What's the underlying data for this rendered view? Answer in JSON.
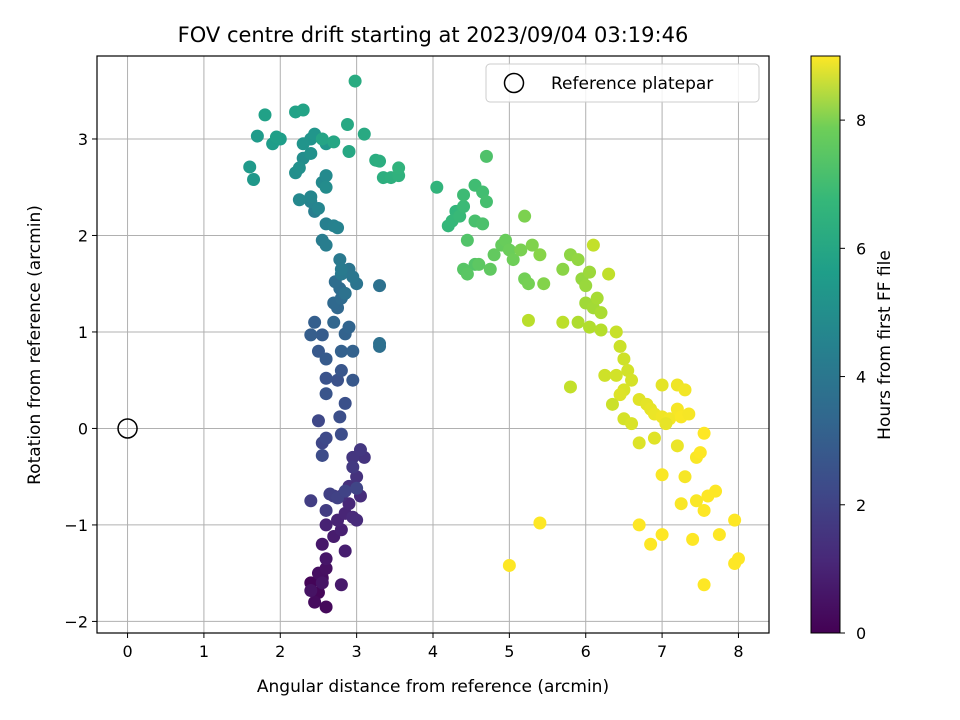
{
  "chart_data": {
    "type": "scatter",
    "title": "FOV centre drift starting at 2023/09/04 03:19:46",
    "xlabel": "Angular distance from reference (arcmin)",
    "ylabel": "Rotation from reference (arcmin)",
    "xlim": [
      -0.4,
      8.4
    ],
    "ylim": [
      -2.12,
      3.86
    ],
    "xticks": [
      "0",
      "1",
      "2",
      "3",
      "4",
      "5",
      "6",
      "7",
      "8"
    ],
    "yticks": [
      "−2",
      "−1",
      "0",
      "1",
      "2",
      "3"
    ],
    "grid": true,
    "colormap": "viridis",
    "legend": {
      "placement": "upper right",
      "label": "Reference platepar"
    },
    "reference_point": {
      "x": 0,
      "y": 0
    },
    "colorbar": {
      "label": "Hours from first FF file",
      "range": [
        0,
        9
      ],
      "ticks": [
        "0",
        "2",
        "4",
        "6",
        "8"
      ]
    },
    "series": [
      {
        "points": [
          [
            2.4,
            -1.6,
            0.1
          ],
          [
            2.5,
            -1.7,
            0.15
          ],
          [
            2.6,
            -1.85,
            0.2
          ],
          [
            2.45,
            -1.8,
            0.25
          ],
          [
            2.55,
            -1.55,
            0.3
          ],
          [
            2.5,
            -1.5,
            0.35
          ],
          [
            2.6,
            -1.45,
            0.4
          ],
          [
            2.4,
            -1.68,
            0.45
          ],
          [
            2.55,
            -1.6,
            0.5
          ],
          [
            2.6,
            -1.35,
            0.55
          ],
          [
            2.55,
            -1.2,
            0.6
          ],
          [
            2.8,
            -1.62,
            0.65
          ],
          [
            2.7,
            -1.12,
            0.7
          ],
          [
            2.85,
            -1.27,
            0.75
          ],
          [
            2.8,
            -1.05,
            0.8
          ],
          [
            2.6,
            -1.0,
            0.85
          ],
          [
            2.75,
            -0.95,
            0.9
          ],
          [
            2.85,
            -0.88,
            0.95
          ],
          [
            2.9,
            -0.78,
            1.0
          ],
          [
            2.95,
            -0.92,
            1.05
          ],
          [
            3.0,
            -0.95,
            1.1
          ],
          [
            3.05,
            -0.7,
            1.15
          ],
          [
            2.8,
            -0.7,
            1.2
          ],
          [
            2.9,
            -0.6,
            1.25
          ],
          [
            3.0,
            -0.5,
            1.3
          ],
          [
            3.1,
            -0.3,
            1.35
          ],
          [
            2.95,
            -0.3,
            1.4
          ],
          [
            3.05,
            -0.22,
            1.45
          ],
          [
            2.95,
            -0.4,
            1.5
          ],
          [
            2.7,
            -0.7,
            1.55
          ],
          [
            2.6,
            -0.85,
            1.6
          ],
          [
            2.4,
            -0.75,
            1.65
          ],
          [
            2.65,
            -0.68,
            1.7
          ],
          [
            2.75,
            -0.72,
            1.75
          ],
          [
            2.85,
            -0.65,
            1.8
          ],
          [
            3.0,
            -0.62,
            1.85
          ],
          [
            2.55,
            -0.15,
            1.9
          ],
          [
            2.5,
            0.08,
            1.95
          ],
          [
            2.6,
            -0.1,
            2.0
          ],
          [
            2.55,
            -0.28,
            2.05
          ],
          [
            2.8,
            -0.06,
            2.1
          ],
          [
            2.78,
            0.12,
            2.15
          ],
          [
            2.85,
            0.26,
            2.2
          ],
          [
            2.75,
            0.5,
            2.25
          ],
          [
            2.6,
            0.52,
            2.3
          ],
          [
            2.6,
            0.36,
            2.35
          ],
          [
            2.8,
            0.6,
            2.4
          ],
          [
            2.95,
            0.5,
            2.45
          ],
          [
            2.5,
            0.8,
            2.5
          ],
          [
            2.6,
            0.72,
            2.55
          ],
          [
            2.55,
            0.97,
            2.6
          ],
          [
            2.4,
            0.97,
            2.65
          ],
          [
            2.45,
            1.1,
            2.7
          ],
          [
            2.8,
            0.8,
            2.75
          ],
          [
            2.95,
            0.8,
            2.8
          ],
          [
            2.85,
            0.98,
            2.85
          ],
          [
            2.9,
            1.05,
            2.9
          ],
          [
            2.7,
            1.1,
            2.95
          ],
          [
            2.75,
            1.25,
            3.0
          ],
          [
            2.7,
            1.3,
            3.05
          ],
          [
            2.8,
            1.35,
            3.1
          ],
          [
            2.78,
            1.45,
            3.15
          ],
          [
            2.72,
            1.52,
            3.2
          ],
          [
            3.3,
            0.85,
            3.25
          ],
          [
            3.3,
            0.88,
            3.3
          ],
          [
            3.3,
            1.48,
            3.35
          ],
          [
            2.85,
            1.4,
            3.4
          ],
          [
            3.0,
            1.5,
            3.45
          ],
          [
            2.9,
            1.65,
            3.5
          ],
          [
            2.95,
            1.57,
            3.55
          ],
          [
            2.8,
            1.6,
            3.6
          ],
          [
            2.78,
            1.75,
            3.65
          ],
          [
            2.8,
            1.65,
            3.7
          ],
          [
            2.55,
            1.95,
            3.75
          ],
          [
            2.6,
            1.9,
            3.8
          ],
          [
            2.45,
            2.25,
            3.85
          ],
          [
            2.6,
            2.12,
            3.9
          ],
          [
            2.7,
            2.1,
            3.95
          ],
          [
            2.75,
            2.08,
            4.0
          ],
          [
            2.4,
            2.35,
            4.05
          ],
          [
            2.5,
            2.28,
            4.1
          ],
          [
            2.4,
            2.4,
            4.15
          ],
          [
            2.25,
            2.37,
            4.2
          ],
          [
            2.55,
            2.55,
            4.25
          ],
          [
            2.6,
            2.62,
            4.3
          ],
          [
            2.6,
            2.5,
            4.35
          ],
          [
            2.3,
            2.8,
            4.4
          ],
          [
            2.2,
            2.65,
            4.45
          ],
          [
            2.25,
            2.7,
            4.5
          ],
          [
            2.4,
            2.85,
            4.55
          ],
          [
            2.4,
            3.0,
            4.6
          ],
          [
            2.3,
            2.95,
            4.65
          ],
          [
            2.45,
            3.05,
            4.7
          ],
          [
            2.6,
            2.95,
            4.75
          ],
          [
            1.65,
            2.58,
            4.8
          ],
          [
            1.6,
            2.71,
            4.85
          ],
          [
            1.7,
            3.03,
            4.9
          ],
          [
            1.9,
            2.95,
            4.95
          ],
          [
            2.0,
            3.0,
            5.0
          ],
          [
            1.95,
            3.02,
            5.05
          ],
          [
            1.8,
            3.25,
            5.1
          ],
          [
            2.2,
            3.28,
            5.15
          ],
          [
            2.3,
            3.3,
            5.2
          ],
          [
            2.55,
            3.0,
            5.25
          ],
          [
            2.7,
            2.97,
            5.3
          ],
          [
            2.9,
            2.87,
            5.35
          ],
          [
            2.88,
            3.15,
            5.4
          ],
          [
            3.1,
            3.05,
            5.45
          ],
          [
            2.98,
            3.6,
            5.5
          ],
          [
            3.25,
            2.78,
            5.55
          ],
          [
            3.3,
            2.77,
            5.6
          ],
          [
            3.35,
            2.6,
            5.65
          ],
          [
            3.45,
            2.6,
            5.7
          ],
          [
            3.55,
            2.62,
            5.75
          ],
          [
            3.55,
            2.7,
            5.8
          ],
          [
            4.05,
            2.5,
            5.85
          ],
          [
            4.3,
            2.25,
            5.9
          ],
          [
            4.2,
            2.1,
            5.95
          ],
          [
            4.25,
            2.15,
            6.0
          ],
          [
            4.35,
            2.2,
            6.05
          ],
          [
            4.4,
            2.3,
            6.1
          ],
          [
            4.4,
            2.42,
            6.15
          ],
          [
            4.55,
            2.52,
            6.2
          ],
          [
            4.65,
            2.45,
            6.25
          ],
          [
            4.7,
            2.35,
            6.3
          ],
          [
            4.55,
            2.15,
            6.35
          ],
          [
            4.65,
            2.12,
            6.4
          ],
          [
            4.7,
            2.82,
            6.45
          ],
          [
            4.45,
            1.95,
            6.5
          ],
          [
            4.55,
            1.7,
            6.55
          ],
          [
            4.4,
            1.65,
            6.6
          ],
          [
            4.45,
            1.6,
            6.65
          ],
          [
            4.6,
            1.7,
            6.7
          ],
          [
            4.75,
            1.65,
            6.75
          ],
          [
            4.8,
            1.8,
            6.8
          ],
          [
            4.9,
            1.9,
            6.85
          ],
          [
            4.95,
            1.95,
            6.9
          ],
          [
            5.0,
            1.85,
            6.95
          ],
          [
            5.05,
            1.75,
            7.0
          ],
          [
            5.2,
            1.55,
            7.05
          ],
          [
            5.25,
            1.5,
            7.1
          ],
          [
            5.15,
            1.85,
            7.15
          ],
          [
            5.2,
            2.2,
            7.2
          ],
          [
            5.3,
            1.9,
            7.25
          ],
          [
            5.45,
            1.5,
            7.3
          ],
          [
            5.4,
            1.8,
            7.35
          ],
          [
            5.7,
            1.65,
            7.4
          ],
          [
            5.8,
            1.8,
            7.45
          ],
          [
            5.9,
            1.75,
            7.5
          ],
          [
            5.95,
            1.55,
            7.55
          ],
          [
            6.0,
            1.48,
            7.6
          ],
          [
            6.05,
            1.62,
            7.65
          ],
          [
            6.0,
            1.3,
            7.7
          ],
          [
            6.1,
            1.25,
            7.75
          ],
          [
            6.15,
            1.35,
            7.8
          ],
          [
            6.2,
            1.2,
            7.85
          ],
          [
            5.9,
            1.1,
            7.9
          ],
          [
            6.05,
            1.05,
            7.95
          ],
          [
            6.2,
            1.02,
            8.0
          ],
          [
            5.25,
            1.12,
            8.05
          ],
          [
            5.7,
            1.1,
            8.1
          ],
          [
            6.3,
            1.6,
            8.15
          ],
          [
            6.1,
            1.9,
            8.2
          ],
          [
            6.4,
            1.0,
            8.25
          ],
          [
            6.45,
            0.85,
            8.3
          ],
          [
            6.5,
            0.72,
            8.35
          ],
          [
            6.55,
            0.6,
            8.4
          ],
          [
            6.6,
            0.5,
            8.45
          ],
          [
            6.5,
            0.4,
            8.5
          ],
          [
            6.45,
            0.35,
            8.55
          ],
          [
            6.7,
            0.3,
            8.6
          ],
          [
            6.8,
            0.25,
            8.65
          ],
          [
            6.85,
            0.2,
            8.7
          ],
          [
            6.9,
            0.15,
            8.75
          ],
          [
            7.0,
            0.12,
            8.8
          ],
          [
            7.1,
            0.1,
            8.85
          ],
          [
            7.2,
            0.2,
            8.9
          ],
          [
            7.25,
            0.12,
            8.95
          ]
        ]
      },
      {
        "points": [
          [
            5.8,
            0.43,
            8.2
          ],
          [
            6.35,
            0.25,
            8.3
          ],
          [
            6.25,
            0.55,
            8.35
          ],
          [
            6.4,
            0.55,
            8.4
          ],
          [
            6.5,
            0.1,
            8.45
          ],
          [
            6.6,
            0.05,
            8.5
          ],
          [
            6.7,
            -0.15,
            8.55
          ],
          [
            6.9,
            -0.1,
            8.6
          ],
          [
            7.0,
            0.45,
            8.65
          ],
          [
            7.05,
            0.05,
            8.7
          ],
          [
            7.2,
            -0.18,
            8.75
          ],
          [
            7.2,
            0.45,
            8.8
          ],
          [
            7.3,
            0.4,
            8.85
          ],
          [
            7.35,
            0.15,
            8.9
          ],
          [
            7.45,
            -0.3,
            8.95
          ],
          [
            7.5,
            -0.25,
            9.0
          ],
          [
            7.55,
            -0.05,
            9.0
          ],
          [
            7.0,
            -0.48,
            8.95
          ],
          [
            7.3,
            -0.5,
            8.9
          ],
          [
            7.25,
            -0.78,
            8.95
          ],
          [
            7.45,
            -0.75,
            8.95
          ],
          [
            7.6,
            -0.7,
            9.0
          ],
          [
            7.7,
            -0.65,
            9.0
          ],
          [
            7.55,
            -0.85,
            9.0
          ],
          [
            6.7,
            -1.0,
            9.0
          ],
          [
            6.85,
            -1.2,
            9.0
          ],
          [
            7.0,
            -1.1,
            9.0
          ],
          [
            7.4,
            -1.15,
            9.0
          ],
          [
            7.75,
            -1.1,
            9.0
          ],
          [
            7.95,
            -0.95,
            9.0
          ],
          [
            7.95,
            -1.4,
            9.0
          ],
          [
            8.0,
            -1.35,
            9.0
          ],
          [
            7.55,
            -1.62,
            9.0
          ],
          [
            5.0,
            -1.42,
            9.0
          ],
          [
            5.4,
            -0.98,
            9.0
          ]
        ]
      }
    ]
  }
}
